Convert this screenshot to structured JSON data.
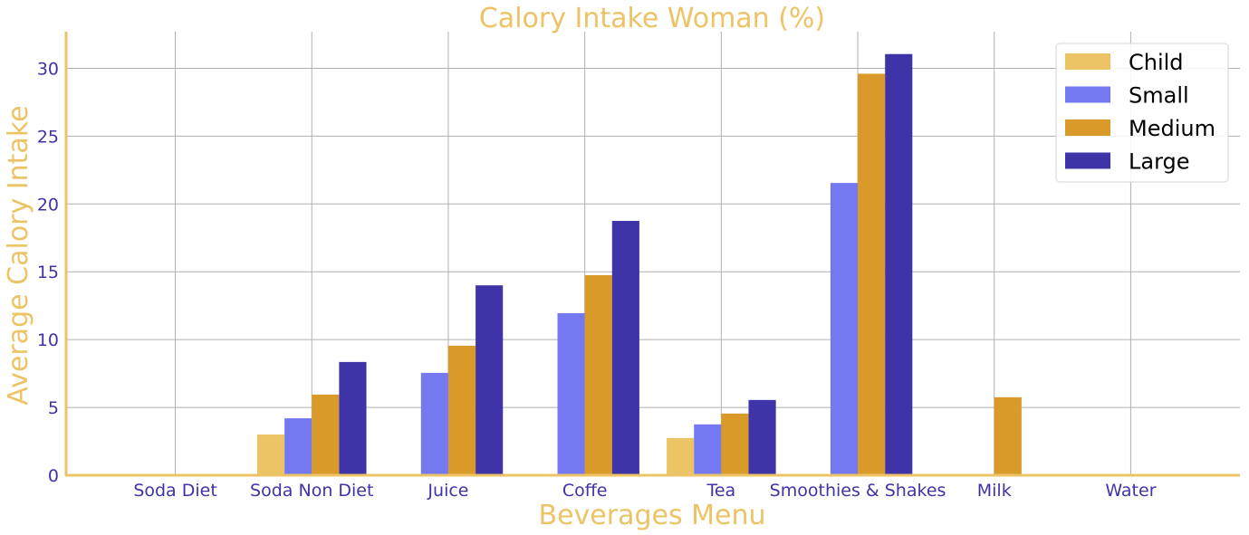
{
  "chart_data": {
    "type": "bar",
    "title": "Calory Intake Woman (%)",
    "xlabel": "Beverages Menu",
    "ylabel": "Average Calory Intake",
    "categories": [
      "Soda Diet",
      "Soda Non Diet",
      "Juice",
      "Coffe",
      "Tea",
      "Smoothies & Shakes",
      "Milk",
      "Water"
    ],
    "series": [
      {
        "name": "Child",
        "color": "#ecc466",
        "values": [
          0,
          3.0,
          0,
          0,
          2.75,
          0,
          0,
          0
        ]
      },
      {
        "name": "Small",
        "color": "#7479f2",
        "values": [
          0,
          4.2,
          7.55,
          11.95,
          3.75,
          21.55,
          0,
          0
        ]
      },
      {
        "name": "Medium",
        "color": "#d99a29",
        "values": [
          0,
          5.95,
          9.55,
          14.75,
          4.55,
          29.6,
          5.75,
          0
        ]
      },
      {
        "name": "Large",
        "color": "#3f33a8",
        "values": [
          0,
          8.35,
          14.0,
          18.75,
          5.55,
          31.05,
          0,
          0
        ]
      }
    ],
    "ylim": [
      0,
      32.7
    ],
    "yticks": [
      "0",
      "5",
      "10",
      "15",
      "20",
      "25",
      "30"
    ],
    "grid": true,
    "legend_position": "top-right",
    "colors": {
      "title": "#ecc466",
      "axis_label": "#ecc466",
      "tick_label": "#3f33a8",
      "spine": "#ecc466",
      "grid": "#b0b0b0"
    }
  }
}
